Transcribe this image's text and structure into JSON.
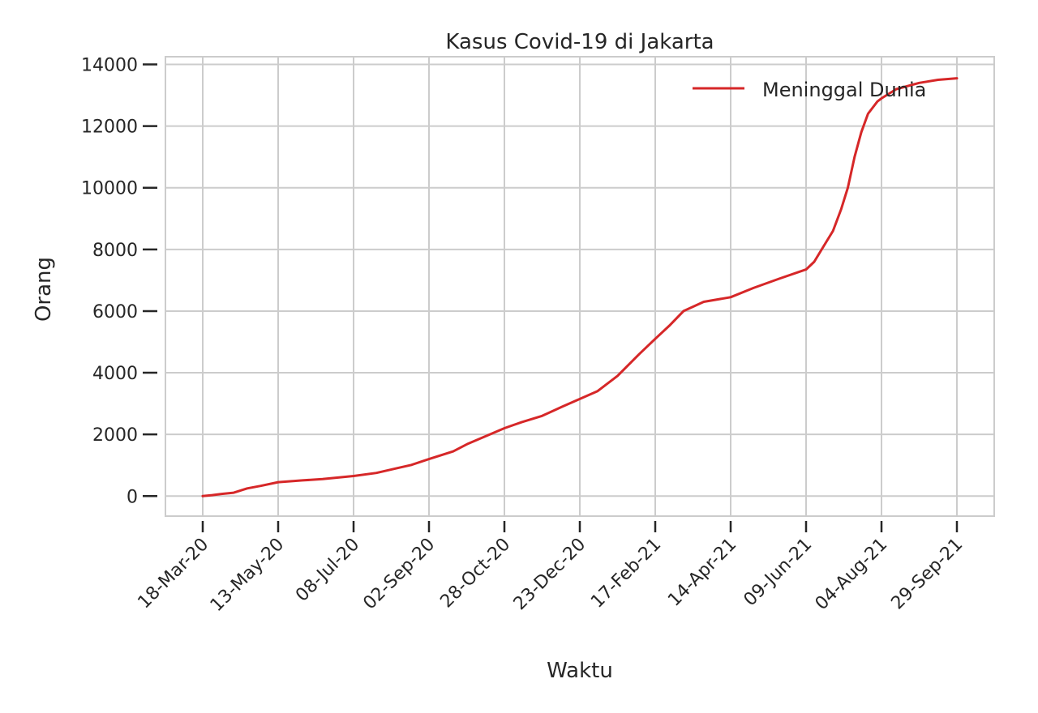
{
  "chart_data": {
    "type": "line",
    "title": "Kasus Covid-19 di Jakarta",
    "xlabel": "Waktu",
    "ylabel": "Orang",
    "x_ticks": [
      "18-Mar-20",
      "13-May-20",
      "08-Jul-20",
      "02-Sep-20",
      "28-Oct-20",
      "23-Dec-20",
      "17-Feb-21",
      "14-Apr-21",
      "09-Jun-21",
      "04-Aug-21",
      "29-Sep-21"
    ],
    "y_ticks": [
      "0",
      "2000",
      "4000",
      "6000",
      "8000",
      "10000",
      "12000",
      "14000"
    ],
    "ylim": [
      -650,
      14250
    ],
    "grid": true,
    "legend_position": "top-right",
    "colors": {
      "series": "#d62728",
      "grid": "#cccccc",
      "axes": "#cccccc",
      "text": "#262626"
    },
    "series": [
      {
        "name": "Meninggal Dunia",
        "color": "#d62728",
        "points": [
          [
            "2020-03-18",
            0
          ],
          [
            "2020-03-25",
            30
          ],
          [
            "2020-04-01",
            70
          ],
          [
            "2020-04-10",
            110
          ],
          [
            "2020-04-20",
            250
          ],
          [
            "2020-04-30",
            330
          ],
          [
            "2020-05-13",
            450
          ],
          [
            "2020-05-31",
            510
          ],
          [
            "2020-06-15",
            550
          ],
          [
            "2020-07-08",
            650
          ],
          [
            "2020-07-25",
            750
          ],
          [
            "2020-08-10",
            910
          ],
          [
            "2020-08-20",
            1010
          ],
          [
            "2020-09-02",
            1200
          ],
          [
            "2020-09-20",
            1450
          ],
          [
            "2020-10-01",
            1700
          ],
          [
            "2020-10-28",
            2200
          ],
          [
            "2020-11-10",
            2400
          ],
          [
            "2020-11-25",
            2600
          ],
          [
            "2020-12-10",
            2900
          ],
          [
            "2020-12-23",
            3150
          ],
          [
            "2021-01-05",
            3400
          ],
          [
            "2021-01-20",
            3900
          ],
          [
            "2021-02-05",
            4600
          ],
          [
            "2021-02-17",
            5100
          ],
          [
            "2021-02-28",
            5550
          ],
          [
            "2021-03-10",
            6000
          ],
          [
            "2021-03-25",
            6300
          ],
          [
            "2021-04-14",
            6450
          ],
          [
            "2021-05-01",
            6750
          ],
          [
            "2021-05-20",
            7050
          ],
          [
            "2021-06-09",
            7350
          ],
          [
            "2021-06-15",
            7600
          ],
          [
            "2021-06-22",
            8100
          ],
          [
            "2021-06-29",
            8600
          ],
          [
            "2021-07-05",
            9300
          ],
          [
            "2021-07-10",
            10000
          ],
          [
            "2021-07-15",
            11000
          ],
          [
            "2021-07-20",
            11800
          ],
          [
            "2021-07-25",
            12400
          ],
          [
            "2021-08-01",
            12800
          ],
          [
            "2021-08-04",
            12900
          ],
          [
            "2021-08-15",
            13200
          ],
          [
            "2021-09-01",
            13400
          ],
          [
            "2021-09-15",
            13500
          ],
          [
            "2021-09-29",
            13550
          ]
        ]
      }
    ]
  }
}
